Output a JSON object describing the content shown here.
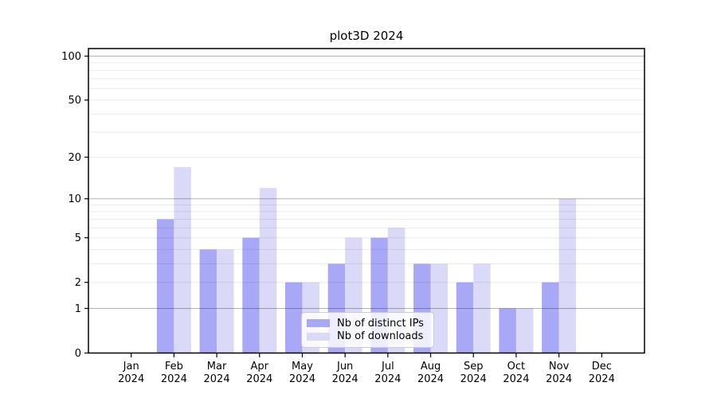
{
  "figure": {
    "title": "plot3D 2024"
  },
  "legend": {
    "items": [
      {
        "label": "Nb of distinct IPs",
        "color": "#a8a8f6"
      },
      {
        "label": "Nb of downloads",
        "color": "#dadaf8"
      }
    ]
  },
  "chart_data": {
    "type": "bar",
    "title": "plot3D 2024",
    "categories": [
      "Jan 2024",
      "Feb 2024",
      "Mar 2024",
      "Apr 2024",
      "May 2024",
      "Jun 2024",
      "Jul 2024",
      "Aug 2024",
      "Sep 2024",
      "Oct 2024",
      "Nov 2024",
      "Dec 2024"
    ],
    "series": [
      {
        "name": "Nb of distinct IPs",
        "color": "#a8a8f6",
        "values": [
          0,
          7,
          4,
          5,
          2,
          3,
          5,
          3,
          2,
          1,
          2,
          0
        ]
      },
      {
        "name": "Nb of downloads",
        "color": "#dadaf8",
        "values": [
          0,
          17,
          4,
          12,
          2,
          5,
          6,
          3,
          3,
          1,
          10,
          0
        ]
      }
    ],
    "xlabel": "",
    "ylabel": "",
    "yscale": "log1p",
    "ylim": [
      0,
      113
    ],
    "ytick_labels": [
      "0",
      "1",
      "2",
      "5",
      "10",
      "20",
      "50",
      "100"
    ],
    "ytick_values": [
      0,
      1,
      2,
      5,
      10,
      20,
      50,
      100
    ],
    "ymajor_gridlines": [
      1,
      10,
      100
    ],
    "yminor_gridlines": [
      2,
      3,
      4,
      5,
      6,
      7,
      8,
      9,
      20,
      30,
      40,
      50,
      60,
      70,
      80,
      90
    ],
    "grid": true,
    "legend_position": "lower-center-inside",
    "axis_color": "#000000"
  }
}
